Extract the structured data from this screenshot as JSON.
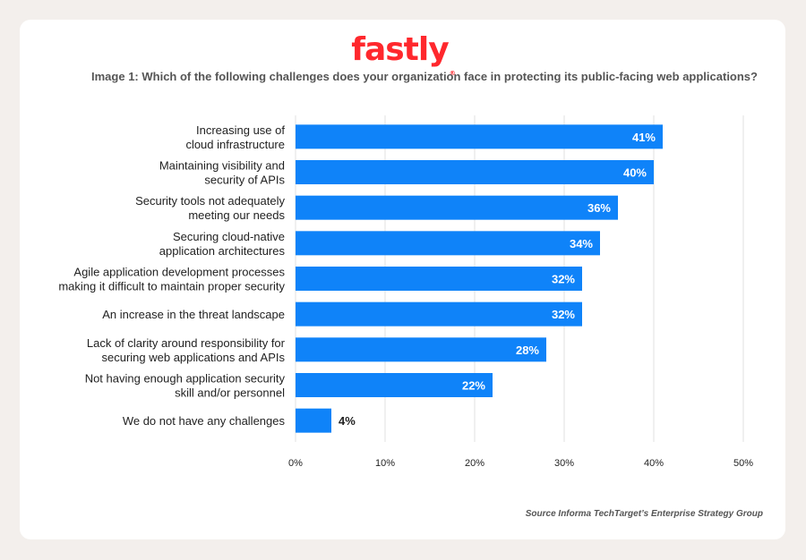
{
  "brand": {
    "name": "fastly",
    "color": "#ff282d"
  },
  "subtitle": "Image 1: Which of the following challenges does your organization face in protecting its public-facing web applications?",
  "source": "Source Informa TechTarget’s Enterprise Strategy Group",
  "chart_data": {
    "type": "bar",
    "orientation": "horizontal",
    "categories": [
      [
        "Increasing use of",
        "cloud infrastructure"
      ],
      [
        "Maintaining visibility and",
        "security of APIs"
      ],
      [
        "Security tools not adequately",
        "meeting our needs"
      ],
      [
        "Securing cloud-native",
        "application architectures"
      ],
      [
        "Agile application development processes",
        "making it difficult to maintain proper security"
      ],
      [
        "An increase in the threat landscape"
      ],
      [
        "Lack of clarity around responsibility for",
        "securing web applications and APIs"
      ],
      [
        "Not having enough application security",
        "skill and/or personnel"
      ],
      [
        "We do not have any challenges"
      ]
    ],
    "values": [
      41,
      40,
      36,
      34,
      32,
      32,
      28,
      22,
      4
    ],
    "value_labels": [
      "41%",
      "40%",
      "36%",
      "34%",
      "32%",
      "32%",
      "28%",
      "22%",
      "4%"
    ],
    "xlim": [
      0,
      50
    ],
    "xticks": [
      "0%",
      "10%",
      "20%",
      "30%",
      "40%",
      "50%"
    ],
    "bar_color": "#0f83f9",
    "grid": true
  }
}
